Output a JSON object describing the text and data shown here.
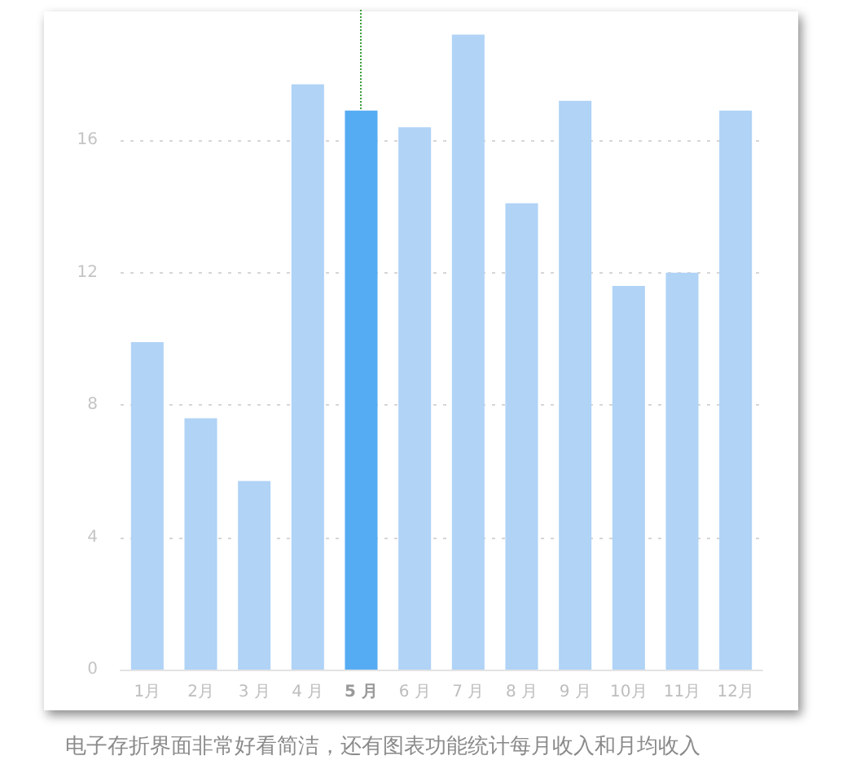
{
  "chart_data": {
    "type": "bar",
    "categories": [
      "1月",
      "2月",
      "3 月",
      "4 月",
      "5 月",
      "6 月",
      "7 月",
      "8 月",
      "9 月",
      "10月",
      "11月",
      "12月"
    ],
    "values": [
      9.9,
      7.6,
      5.7,
      17.7,
      16.9,
      16.4,
      19.2,
      14.1,
      17.2,
      11.6,
      12.0,
      16.9
    ],
    "colors": [
      "#b0d3f6",
      "#b0d3f6",
      "#b0d3f6",
      "#b0d3f6",
      "#56acf2",
      "#b0d3f6",
      "#b0d3f6",
      "#b0d3f6",
      "#b0d3f6",
      "#b0d3f6",
      "#b0d3f6",
      "#b0d3f6"
    ],
    "ylim": [
      0,
      20
    ],
    "yticks": [
      0,
      4,
      8,
      12,
      16
    ],
    "grid": "y",
    "ref_lines": [
      {
        "axis": "x",
        "value": "5 月",
        "color": "#3aa03a",
        "line_style": "dotted"
      }
    ],
    "annotations": [
      "电子存折界面非常好看简洁，还有图表功能统计每月收入和月均收入"
    ]
  }
}
